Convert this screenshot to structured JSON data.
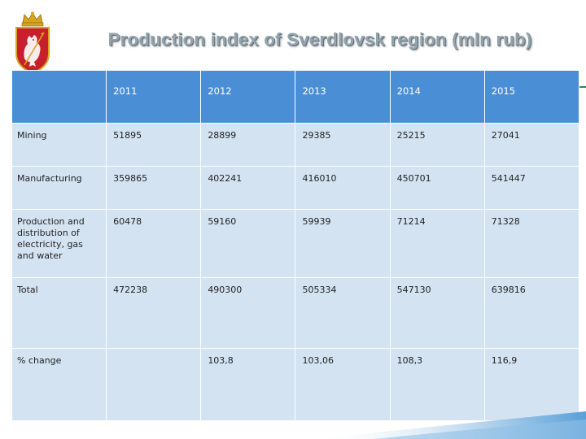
{
  "title": "Production index of Sverdlovsk region (mln rub)",
  "table": {
    "columns": [
      "",
      "2011",
      "2012",
      "2013",
      "2014",
      "2015"
    ],
    "rows": [
      [
        "Mining",
        "51895",
        "28899",
        "29385",
        "25215",
        "27041"
      ],
      [
        "Manufacturing",
        "359865",
        "402241",
        "416010",
        "450701",
        "541447"
      ],
      [
        "Production and distribution of electricity, gas and water",
        "60478",
        "59160",
        "59939",
        "71214",
        "71328"
      ],
      [
        "Total",
        "472238",
        "490300",
        "505334",
        "547130",
        "639816"
      ],
      [
        "% change",
        "",
        "103,8",
        "103,06",
        "108,3",
        "116,9"
      ]
    ]
  },
  "colors": {
    "header_fill": "#4a8fd6",
    "cell_fill": "#d4e3f2",
    "title_text": "#93a3ad",
    "accent_green": "#2b8a3e",
    "emblem_red": "#c8202a",
    "emblem_gold": "#d9a521"
  },
  "icons": {
    "emblem": "coat-of-arms-icon"
  }
}
